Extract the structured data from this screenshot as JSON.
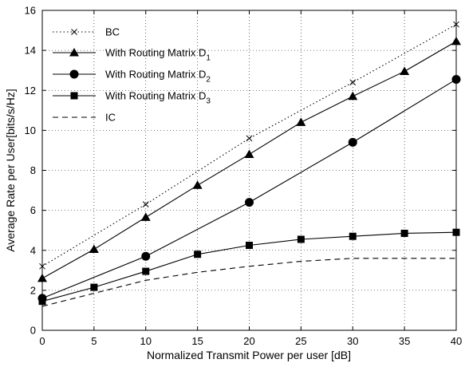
{
  "chart_data": {
    "type": "line",
    "xlabel": "Normalized Transmit Power per user [dB]",
    "ylabel": "Average Rate per User[bits/s/Hz]",
    "xlim": [
      0,
      40
    ],
    "ylim": [
      0,
      16
    ],
    "xticks": [
      0,
      5,
      10,
      15,
      20,
      25,
      30,
      35,
      40
    ],
    "yticks": [
      0,
      2,
      4,
      6,
      8,
      10,
      12,
      14,
      16
    ],
    "grid": true,
    "legend_position": "top-left",
    "series": [
      {
        "name": "BC",
        "sub": "",
        "line": "dotted",
        "marker": "x",
        "color": "#000000",
        "x": [
          0,
          10,
          20,
          30,
          40
        ],
        "y": [
          3.2,
          6.3,
          9.6,
          12.4,
          15.3
        ],
        "markers_x": [
          0,
          10,
          20,
          30,
          40
        ],
        "markers_y": [
          3.2,
          6.3,
          9.6,
          12.4,
          15.3
        ]
      },
      {
        "name": "With Routing Matrix D",
        "sub": "1",
        "line": "solid",
        "marker": "triangle",
        "color": "#000000",
        "x": [
          0,
          5,
          10,
          15,
          20,
          25,
          30,
          35,
          40
        ],
        "y": [
          2.6,
          4.05,
          5.65,
          7.25,
          8.8,
          10.4,
          11.7,
          12.95,
          14.45
        ],
        "markers_x": [
          0,
          5,
          10,
          15,
          20,
          25,
          30,
          35,
          40
        ],
        "markers_y": [
          2.6,
          4.05,
          5.65,
          7.25,
          8.8,
          10.4,
          11.7,
          12.95,
          14.45
        ]
      },
      {
        "name": "With Routing Matrix D",
        "sub": "2",
        "line": "solid",
        "marker": "circle",
        "color": "#000000",
        "x": [
          0,
          10,
          20,
          30,
          40
        ],
        "y": [
          1.6,
          3.7,
          6.4,
          9.4,
          12.55
        ],
        "markers_x": [
          0,
          10,
          20,
          30,
          40
        ],
        "markers_y": [
          1.6,
          3.7,
          6.4,
          9.4,
          12.55
        ]
      },
      {
        "name": "With Routing Matrix D",
        "sub": "3",
        "line": "solid",
        "marker": "square",
        "color": "#000000",
        "x": [
          0,
          5,
          10,
          15,
          20,
          25,
          30,
          35,
          40
        ],
        "y": [
          1.45,
          2.15,
          2.95,
          3.8,
          4.25,
          4.55,
          4.7,
          4.85,
          4.9
        ],
        "markers_x": [
          0,
          5,
          10,
          15,
          20,
          25,
          30,
          35,
          40
        ],
        "markers_y": [
          1.45,
          2.15,
          2.95,
          3.8,
          4.25,
          4.55,
          4.7,
          4.85,
          4.9
        ]
      },
      {
        "name": "IC",
        "sub": "",
        "line": "dashed",
        "marker": "none",
        "color": "#000000",
        "x": [
          0,
          5,
          10,
          15,
          20,
          25,
          30,
          35,
          40
        ],
        "y": [
          1.2,
          1.85,
          2.5,
          2.9,
          3.2,
          3.45,
          3.6,
          3.6,
          3.6
        ],
        "markers_x": [],
        "markers_y": []
      }
    ]
  }
}
